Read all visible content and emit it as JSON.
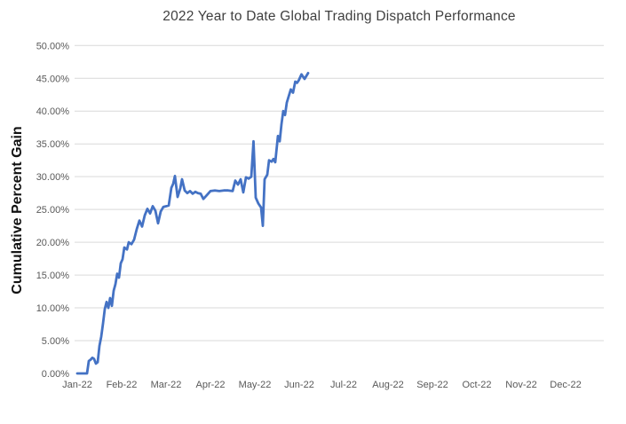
{
  "chart": {
    "title": "2022 Year to Date Global Trading Dispatch Performance",
    "y_axis_title": "Cumulative Percent Gain"
  },
  "colors": {
    "line": "#4472C4",
    "gridline": "#D9D9D9",
    "axis_label": "#595959",
    "title": "#3f3f3f",
    "background": "#FFFFFF"
  },
  "chart_data": {
    "type": "line",
    "title": "2022 Year to Date Global Trading Dispatch Performance",
    "xlabel": "",
    "ylabel": "Cumulative Percent Gain",
    "ylim": [
      0,
      50
    ],
    "y_tick_step": 5,
    "y_tick_labels": [
      "0.00%",
      "5.00%",
      "10.00%",
      "15.00%",
      "20.00%",
      "25.00%",
      "30.00%",
      "35.00%",
      "40.00%",
      "45.00%",
      "50.00%"
    ],
    "x_tick_labels": [
      "Jan-22",
      "Feb-22",
      "Mar-22",
      "Apr-22",
      "May-22",
      "Jun-22",
      "Jul-22",
      "Aug-22",
      "Sep-22",
      "Oct-22",
      "Nov-22",
      "Dec-22"
    ],
    "grid": true,
    "legend": false,
    "series": [
      {
        "name": "Cumulative Percent Gain",
        "x_unit": "months since Jan-22",
        "y_unit": "percent",
        "points": [
          [
            0.0,
            0.0
          ],
          [
            0.08,
            0.0
          ],
          [
            0.16,
            0.0
          ],
          [
            0.22,
            0.0
          ],
          [
            0.26,
            1.9
          ],
          [
            0.3,
            2.1
          ],
          [
            0.34,
            2.4
          ],
          [
            0.38,
            2.2
          ],
          [
            0.42,
            1.5
          ],
          [
            0.46,
            1.7
          ],
          [
            0.5,
            4.2
          ],
          [
            0.54,
            5.6
          ],
          [
            0.58,
            7.6
          ],
          [
            0.62,
            9.8
          ],
          [
            0.66,
            10.9
          ],
          [
            0.7,
            10.0
          ],
          [
            0.74,
            11.5
          ],
          [
            0.78,
            10.3
          ],
          [
            0.82,
            12.6
          ],
          [
            0.86,
            13.6
          ],
          [
            0.9,
            15.2
          ],
          [
            0.94,
            14.6
          ],
          [
            0.98,
            16.8
          ],
          [
            1.02,
            17.4
          ],
          [
            1.06,
            19.2
          ],
          [
            1.12,
            18.9
          ],
          [
            1.16,
            20.0
          ],
          [
            1.22,
            19.7
          ],
          [
            1.28,
            20.4
          ],
          [
            1.34,
            22.0
          ],
          [
            1.4,
            23.3
          ],
          [
            1.46,
            22.4
          ],
          [
            1.52,
            24.1
          ],
          [
            1.58,
            25.1
          ],
          [
            1.64,
            24.4
          ],
          [
            1.7,
            25.5
          ],
          [
            1.76,
            24.8
          ],
          [
            1.82,
            22.9
          ],
          [
            1.88,
            24.7
          ],
          [
            1.94,
            25.4
          ],
          [
            2.0,
            25.5
          ],
          [
            2.06,
            25.6
          ],
          [
            2.12,
            28.3
          ],
          [
            2.16,
            28.9
          ],
          [
            2.2,
            30.1
          ],
          [
            2.26,
            26.9
          ],
          [
            2.32,
            28.2
          ],
          [
            2.36,
            29.6
          ],
          [
            2.42,
            27.9
          ],
          [
            2.48,
            27.5
          ],
          [
            2.54,
            27.8
          ],
          [
            2.6,
            27.4
          ],
          [
            2.66,
            27.7
          ],
          [
            2.72,
            27.5
          ],
          [
            2.78,
            27.4
          ],
          [
            2.84,
            26.6
          ],
          [
            2.92,
            27.2
          ],
          [
            3.0,
            27.8
          ],
          [
            3.1,
            27.9
          ],
          [
            3.2,
            27.8
          ],
          [
            3.3,
            27.9
          ],
          [
            3.4,
            27.9
          ],
          [
            3.5,
            27.8
          ],
          [
            3.56,
            29.4
          ],
          [
            3.62,
            28.8
          ],
          [
            3.68,
            29.6
          ],
          [
            3.74,
            27.6
          ],
          [
            3.8,
            29.9
          ],
          [
            3.86,
            29.7
          ],
          [
            3.92,
            30.0
          ],
          [
            3.97,
            35.4
          ],
          [
            4.02,
            26.8
          ],
          [
            4.08,
            25.9
          ],
          [
            4.14,
            25.3
          ],
          [
            4.18,
            22.5
          ],
          [
            4.22,
            29.6
          ],
          [
            4.28,
            30.3
          ],
          [
            4.32,
            32.5
          ],
          [
            4.38,
            32.3
          ],
          [
            4.42,
            32.7
          ],
          [
            4.46,
            32.2
          ],
          [
            4.52,
            36.2
          ],
          [
            4.56,
            35.4
          ],
          [
            4.6,
            38.0
          ],
          [
            4.64,
            40.0
          ],
          [
            4.68,
            39.4
          ],
          [
            4.72,
            41.3
          ],
          [
            4.76,
            42.2
          ],
          [
            4.81,
            43.3
          ],
          [
            4.86,
            42.8
          ],
          [
            4.91,
            44.5
          ],
          [
            4.95,
            44.3
          ],
          [
            4.99,
            44.7
          ],
          [
            5.05,
            45.6
          ],
          [
            5.12,
            44.9
          ],
          [
            5.2,
            45.8
          ]
        ]
      }
    ]
  },
  "layout_values": {
    "final_value_pct": 45.8
  }
}
